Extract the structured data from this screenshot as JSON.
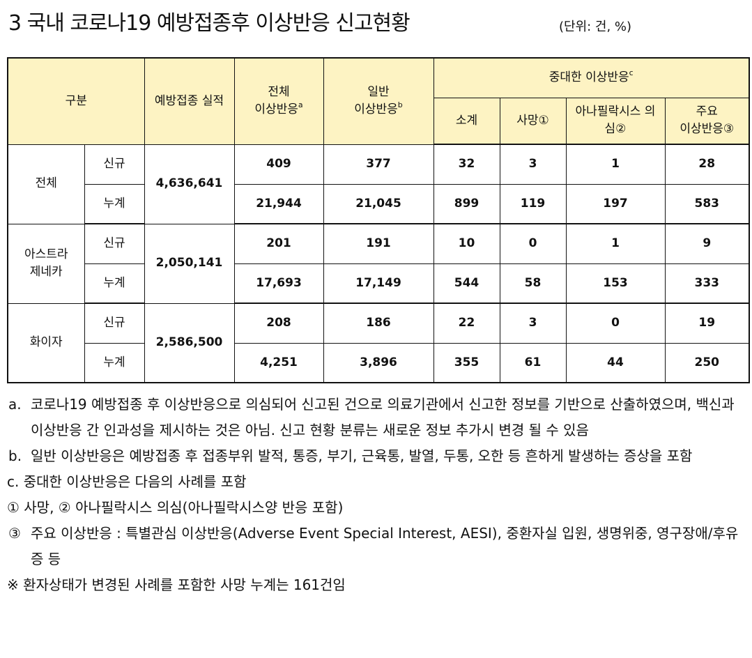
{
  "title": "3  국내 코로나19 예방접종후 이상반응 신고현황",
  "unit": "(단위: 건, %)",
  "headers": {
    "category": "구분",
    "vaccinated": "예방접종 실적",
    "total_l1": "전체",
    "total_l2": "이상반응",
    "total_sup": "a",
    "general_l1": "일반",
    "general_l2": "이상반응",
    "general_sup": "b",
    "serious": "중대한 이상반응",
    "serious_sup": "c",
    "subtotal": "소계",
    "death": "사망①",
    "anaphylaxis_l1": "아나필락시스 의",
    "anaphylaxis_l2": "심②",
    "major_l1": "주요",
    "major_l2": "이상반응③"
  },
  "groups": [
    {
      "name": "전체",
      "vaccinated": "4,636,641",
      "rows": [
        {
          "type": "신규",
          "total": "409",
          "general": "377",
          "subtotal": "32",
          "death": "3",
          "anaphylaxis": "1",
          "major": "28"
        },
        {
          "type": "누계",
          "total": "21,944",
          "general": "21,045",
          "subtotal": "899",
          "death": "119",
          "anaphylaxis": "197",
          "major": "583"
        }
      ]
    },
    {
      "name_l1": "아스트라",
      "name_l2": "제네카",
      "vaccinated": "2,050,141",
      "rows": [
        {
          "type": "신규",
          "total": "201",
          "general": "191",
          "subtotal": "10",
          "death": "0",
          "anaphylaxis": "1",
          "major": "9"
        },
        {
          "type": "누계",
          "total": "17,693",
          "general": "17,149",
          "subtotal": "544",
          "death": "58",
          "anaphylaxis": "153",
          "major": "333"
        }
      ]
    },
    {
      "name": "화이자",
      "vaccinated": "2,586,500",
      "rows": [
        {
          "type": "신규",
          "total": "208",
          "general": "186",
          "subtotal": "22",
          "death": "3",
          "anaphylaxis": "0",
          "major": "19"
        },
        {
          "type": "누계",
          "total": "4,251",
          "general": "3,896",
          "subtotal": "355",
          "death": "61",
          "anaphylaxis": "44",
          "major": "250"
        }
      ]
    }
  ],
  "notes": {
    "a_mark": "a.",
    "a_text": "코로나19 예방접종 후 이상반응으로 의심되어 신고된 건으로 의료기관에서 신고한 정보를 기반으로 산출하였으며, 백신과 이상반응 간 인과성을 제시하는 것은 아님. 신고 현황 분류는 새로운 정보 추가시 변경 될 수 있음",
    "b_mark": "b.",
    "b_text": "일반 이상반응은 예방접종 후 접종부위 발적, 통증, 부기, 근육통, 발열, 두통, 오한 등 흔하게 발생하는 증상을 포함",
    "c_line": "c. 중대한 이상반응은 다음의 사례를 포함",
    "c1_line": "① 사망, ② 아나필락시스 의심(아나필락시스양 반응 포함)",
    "c3_mark": "③",
    "c3_text": "주요 이상반응 : 특별관심 이상반응(Adverse Event Special Interest, AESI), 중환자실 입원, 생명위중, 영구장애/후유증 등",
    "footnote": "※ 환자상태가 변경된 사례를 포함한 사망 누계는 161건임"
  }
}
